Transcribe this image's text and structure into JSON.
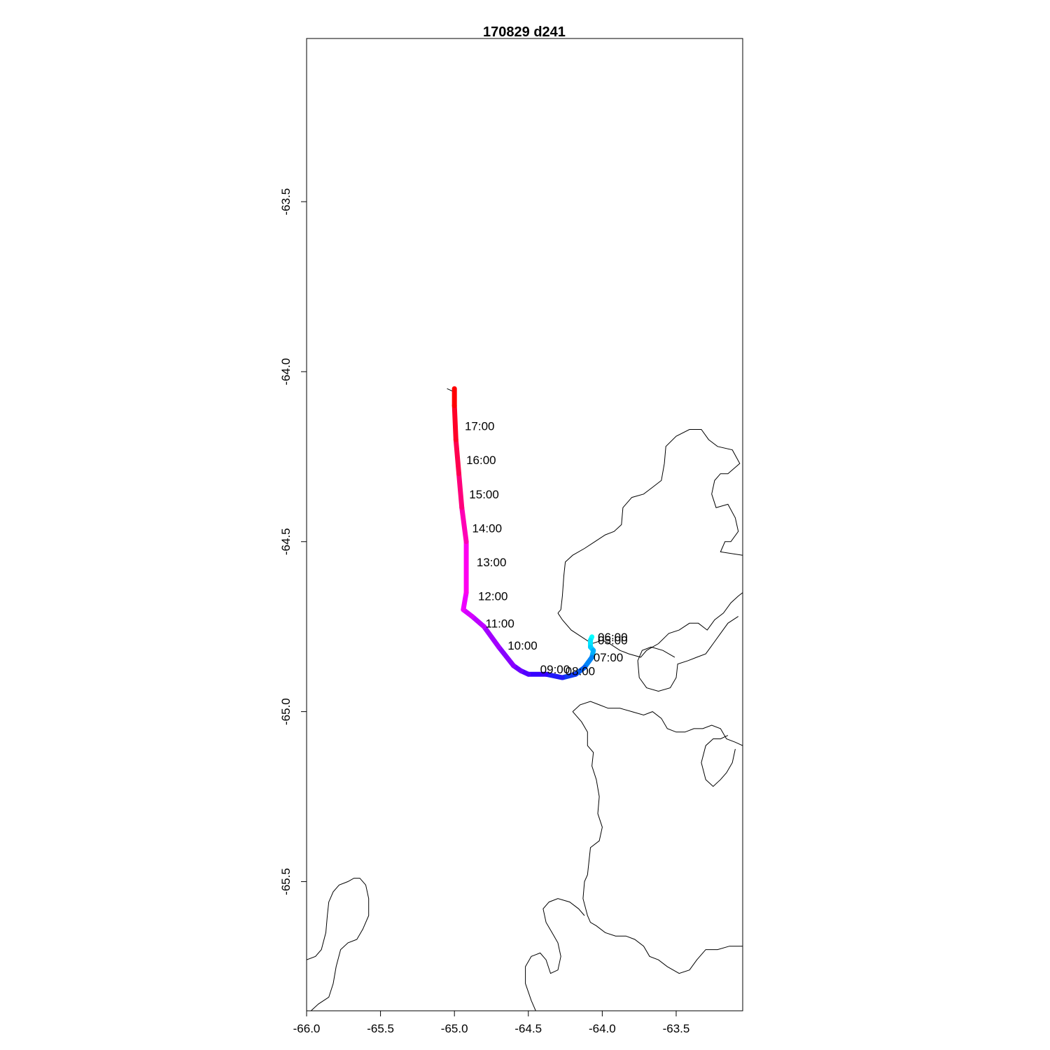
{
  "title": "170829   d241",
  "chart_data": {
    "type": "line",
    "title": "170829   d241",
    "xlabel": "",
    "ylabel": "",
    "xlim": [
      -66.0,
      -63.05
    ],
    "ylim": [
      -65.88,
      -63.02
    ],
    "x_ticks": [
      {
        "value": -66.0,
        "label": "-66.0"
      },
      {
        "value": -65.5,
        "label": "-65.5"
      },
      {
        "value": -65.0,
        "label": "-65.0"
      },
      {
        "value": -64.5,
        "label": "-64.5"
      },
      {
        "value": -64.0,
        "label": "-64.0"
      },
      {
        "value": -63.5,
        "label": "-63.5"
      }
    ],
    "y_ticks": [
      {
        "value": -63.5,
        "label": "-63.5"
      },
      {
        "value": -64.0,
        "label": "-64.0"
      },
      {
        "value": -64.5,
        "label": "-64.5"
      },
      {
        "value": -65.0,
        "label": "-65.0"
      },
      {
        "value": -65.5,
        "label": "-65.5"
      }
    ],
    "track": {
      "colors": [
        "#00FFFF",
        "#00BFFF",
        "#0050F0",
        "#3300FF",
        "#7A00FF",
        "#C000FF",
        "#FF00FF",
        "#FF0066",
        "#FF0000"
      ],
      "points": [
        [
          -64.07,
          -64.78
        ],
        [
          -64.08,
          -64.79
        ],
        [
          -64.08,
          -64.81
        ],
        [
          -64.06,
          -64.82
        ],
        [
          -64.07,
          -64.84
        ],
        [
          -64.12,
          -64.87
        ],
        [
          -64.18,
          -64.89
        ],
        [
          -64.27,
          -64.9
        ],
        [
          -64.38,
          -64.89
        ],
        [
          -64.5,
          -64.89
        ],
        [
          -64.55,
          -64.88
        ],
        [
          -64.6,
          -64.865
        ],
        [
          -64.7,
          -64.81
        ],
        [
          -64.8,
          -64.75
        ],
        [
          -64.88,
          -64.72
        ],
        [
          -64.94,
          -64.7
        ],
        [
          -64.92,
          -64.65
        ],
        [
          -64.92,
          -64.5
        ],
        [
          -64.95,
          -64.4
        ],
        [
          -64.97,
          -64.3
        ],
        [
          -64.99,
          -64.2
        ],
        [
          -65.0,
          -64.1
        ],
        [
          -65.0,
          -64.05
        ]
      ]
    },
    "time_labels": [
      {
        "label": "06:00",
        "x": -64.03,
        "y": -64.78
      },
      {
        "label": "05:00",
        "x": -64.03,
        "y": -64.79
      },
      {
        "label": "07:00",
        "x": -64.06,
        "y": -64.84
      },
      {
        "label": "08:00",
        "x": -64.25,
        "y": -64.88
      },
      {
        "label": "09:00",
        "x": -64.42,
        "y": -64.875
      },
      {
        "label": "10:00",
        "x": -64.64,
        "y": -64.805
      },
      {
        "label": "11:00",
        "x": -64.79,
        "y": -64.74
      },
      {
        "label": "12:00",
        "x": -64.84,
        "y": -64.66
      },
      {
        "label": "13:00",
        "x": -64.85,
        "y": -64.56
      },
      {
        "label": "14:00",
        "x": -64.88,
        "y": -64.46
      },
      {
        "label": "15:00",
        "x": -64.9,
        "y": -64.36
      },
      {
        "label": "16:00",
        "x": -64.92,
        "y": -64.26
      },
      {
        "label": "17:00",
        "x": -64.93,
        "y": -64.16
      }
    ],
    "coastlines": [
      [
        [
          -64.3,
          -64.71
        ],
        [
          -64.28,
          -64.7
        ],
        [
          -64.27,
          -64.66
        ],
        [
          -64.26,
          -64.6
        ],
        [
          -64.25,
          -64.56
        ],
        [
          -64.2,
          -64.54
        ],
        [
          -64.12,
          -64.52
        ],
        [
          -64.05,
          -64.5
        ],
        [
          -63.98,
          -64.48
        ],
        [
          -63.92,
          -64.47
        ],
        [
          -63.87,
          -64.45
        ],
        [
          -63.86,
          -64.4
        ],
        [
          -63.8,
          -64.37
        ],
        [
          -63.72,
          -64.36
        ],
        [
          -63.66,
          -64.34
        ],
        [
          -63.6,
          -64.32
        ],
        [
          -63.58,
          -64.27
        ],
        [
          -63.57,
          -64.22
        ],
        [
          -63.5,
          -64.19
        ],
        [
          -63.41,
          -64.17
        ],
        [
          -63.33,
          -64.17
        ],
        [
          -63.28,
          -64.2
        ],
        [
          -63.22,
          -64.22
        ],
        [
          -63.12,
          -64.23
        ],
        [
          -63.07,
          -64.27
        ],
        [
          -63.15,
          -64.3
        ],
        [
          -63.2,
          -64.3
        ],
        [
          -63.24,
          -64.32
        ],
        [
          -63.26,
          -64.36
        ],
        [
          -63.23,
          -64.4
        ],
        [
          -63.15,
          -64.39
        ],
        [
          -63.1,
          -64.43
        ],
        [
          -63.08,
          -64.47
        ],
        [
          -63.13,
          -64.5
        ],
        [
          -63.17,
          -64.5
        ],
        [
          -63.2,
          -64.53
        ],
        [
          -63.05,
          -64.54
        ]
      ],
      [
        [
          -64.3,
          -64.71
        ],
        [
          -64.27,
          -64.73
        ],
        [
          -64.21,
          -64.76
        ],
        [
          -64.14,
          -64.78
        ],
        [
          -64.07,
          -64.8
        ],
        [
          -64.0,
          -64.79
        ],
        [
          -63.95,
          -64.8
        ],
        [
          -63.88,
          -64.82
        ],
        [
          -63.82,
          -64.83
        ],
        [
          -63.74,
          -64.84
        ],
        [
          -63.7,
          -64.82
        ],
        [
          -63.62,
          -64.8
        ],
        [
          -63.55,
          -64.77
        ],
        [
          -63.48,
          -64.76
        ],
        [
          -63.41,
          -64.74
        ],
        [
          -63.35,
          -64.74
        ],
        [
          -63.29,
          -64.76
        ],
        [
          -63.24,
          -64.73
        ],
        [
          -63.18,
          -64.71
        ],
        [
          -63.13,
          -64.68
        ],
        [
          -63.08,
          -64.66
        ],
        [
          -63.05,
          -64.65
        ]
      ],
      [
        [
          -63.08,
          -64.72
        ],
        [
          -63.15,
          -64.74
        ],
        [
          -63.2,
          -64.77
        ],
        [
          -63.25,
          -64.8
        ],
        [
          -63.3,
          -64.83
        ],
        [
          -63.36,
          -64.84
        ],
        [
          -63.42,
          -64.85
        ],
        [
          -63.49,
          -64.86
        ],
        [
          -63.5,
          -64.9
        ],
        [
          -63.54,
          -64.93
        ],
        [
          -63.62,
          -64.94
        ],
        [
          -63.7,
          -64.93
        ],
        [
          -63.75,
          -64.9
        ],
        [
          -63.76,
          -64.85
        ],
        [
          -63.73,
          -64.82
        ],
        [
          -63.67,
          -64.81
        ],
        [
          -63.59,
          -64.82
        ],
        [
          -63.51,
          -64.84
        ]
      ],
      [
        [
          -65.05,
          -64.05
        ],
        [
          -65.0,
          -64.06
        ]
      ],
      [
        [
          -64.2,
          -65.0
        ],
        [
          -64.14,
          -65.03
        ],
        [
          -64.1,
          -65.06
        ],
        [
          -64.1,
          -65.1
        ],
        [
          -64.06,
          -65.12
        ],
        [
          -64.07,
          -65.16
        ],
        [
          -64.04,
          -65.2
        ],
        [
          -64.02,
          -65.25
        ],
        [
          -64.03,
          -65.3
        ],
        [
          -64.0,
          -65.34
        ],
        [
          -64.02,
          -65.38
        ],
        [
          -64.08,
          -65.4
        ],
        [
          -64.09,
          -65.44
        ],
        [
          -64.1,
          -65.48
        ],
        [
          -64.12,
          -65.5
        ],
        [
          -64.13,
          -65.55
        ],
        [
          -64.1,
          -65.6
        ],
        [
          -64.08,
          -65.62
        ],
        [
          -64.04,
          -65.63
        ],
        [
          -63.98,
          -65.65
        ],
        [
          -63.91,
          -65.66
        ],
        [
          -63.84,
          -65.66
        ],
        [
          -63.78,
          -65.67
        ],
        [
          -63.72,
          -65.69
        ],
        [
          -63.68,
          -65.72
        ],
        [
          -63.62,
          -65.73
        ],
        [
          -63.56,
          -65.75
        ],
        [
          -63.48,
          -65.77
        ],
        [
          -63.41,
          -65.76
        ],
        [
          -63.36,
          -65.73
        ],
        [
          -63.3,
          -65.7
        ],
        [
          -63.22,
          -65.7
        ],
        [
          -63.14,
          -65.69
        ],
        [
          -63.05,
          -65.69
        ]
      ],
      [
        [
          -64.2,
          -65.0
        ],
        [
          -64.15,
          -64.98
        ],
        [
          -64.08,
          -64.97
        ],
        [
          -64.02,
          -64.98
        ],
        [
          -63.96,
          -64.99
        ],
        [
          -63.88,
          -64.99
        ],
        [
          -63.8,
          -65.0
        ],
        [
          -63.72,
          -65.01
        ],
        [
          -63.66,
          -65.0
        ],
        [
          -63.6,
          -65.02
        ],
        [
          -63.56,
          -65.05
        ],
        [
          -63.5,
          -65.06
        ],
        [
          -63.44,
          -65.06
        ],
        [
          -63.38,
          -65.05
        ],
        [
          -63.32,
          -65.05
        ],
        [
          -63.26,
          -65.04
        ],
        [
          -63.2,
          -65.05
        ],
        [
          -63.16,
          -65.08
        ],
        [
          -63.1,
          -65.09
        ],
        [
          -63.05,
          -65.1
        ]
      ],
      [
        [
          -63.15,
          -65.07
        ],
        [
          -63.2,
          -65.08
        ],
        [
          -63.25,
          -65.08
        ],
        [
          -63.3,
          -65.1
        ],
        [
          -63.33,
          -65.15
        ],
        [
          -63.3,
          -65.2
        ],
        [
          -63.25,
          -65.22
        ],
        [
          -63.2,
          -65.2
        ],
        [
          -63.16,
          -65.18
        ],
        [
          -63.12,
          -65.15
        ],
        [
          -63.1,
          -65.11
        ]
      ],
      [
        [
          -64.45,
          -65.88
        ],
        [
          -64.48,
          -65.85
        ],
        [
          -64.52,
          -65.8
        ],
        [
          -64.52,
          -65.75
        ],
        [
          -64.48,
          -65.72
        ],
        [
          -64.42,
          -65.71
        ],
        [
          -64.38,
          -65.73
        ],
        [
          -64.35,
          -65.77
        ],
        [
          -64.3,
          -65.76
        ],
        [
          -64.28,
          -65.72
        ],
        [
          -64.3,
          -65.68
        ],
        [
          -64.34,
          -65.65
        ],
        [
          -64.38,
          -65.62
        ],
        [
          -64.4,
          -65.58
        ],
        [
          -64.36,
          -65.56
        ],
        [
          -64.3,
          -65.55
        ],
        [
          -64.22,
          -65.56
        ],
        [
          -64.16,
          -65.58
        ],
        [
          -64.12,
          -65.6
        ]
      ],
      [
        [
          -65.97,
          -65.88
        ],
        [
          -65.92,
          -65.86
        ],
        [
          -65.85,
          -65.84
        ],
        [
          -65.82,
          -65.8
        ],
        [
          -65.8,
          -65.75
        ],
        [
          -65.77,
          -65.7
        ],
        [
          -65.72,
          -65.68
        ],
        [
          -65.66,
          -65.67
        ],
        [
          -65.62,
          -65.64
        ],
        [
          -65.58,
          -65.6
        ],
        [
          -65.58,
          -65.55
        ],
        [
          -65.6,
          -65.51
        ],
        [
          -65.62,
          -65.5
        ],
        [
          -65.64,
          -65.49
        ],
        [
          -65.68,
          -65.49
        ],
        [
          -65.72,
          -65.5
        ],
        [
          -65.78,
          -65.51
        ],
        [
          -65.82,
          -65.53
        ],
        [
          -65.85,
          -65.56
        ],
        [
          -65.86,
          -65.6
        ],
        [
          -65.87,
          -65.65
        ],
        [
          -65.9,
          -65.7
        ],
        [
          -65.94,
          -65.72
        ],
        [
          -66.0,
          -65.73
        ]
      ]
    ]
  }
}
